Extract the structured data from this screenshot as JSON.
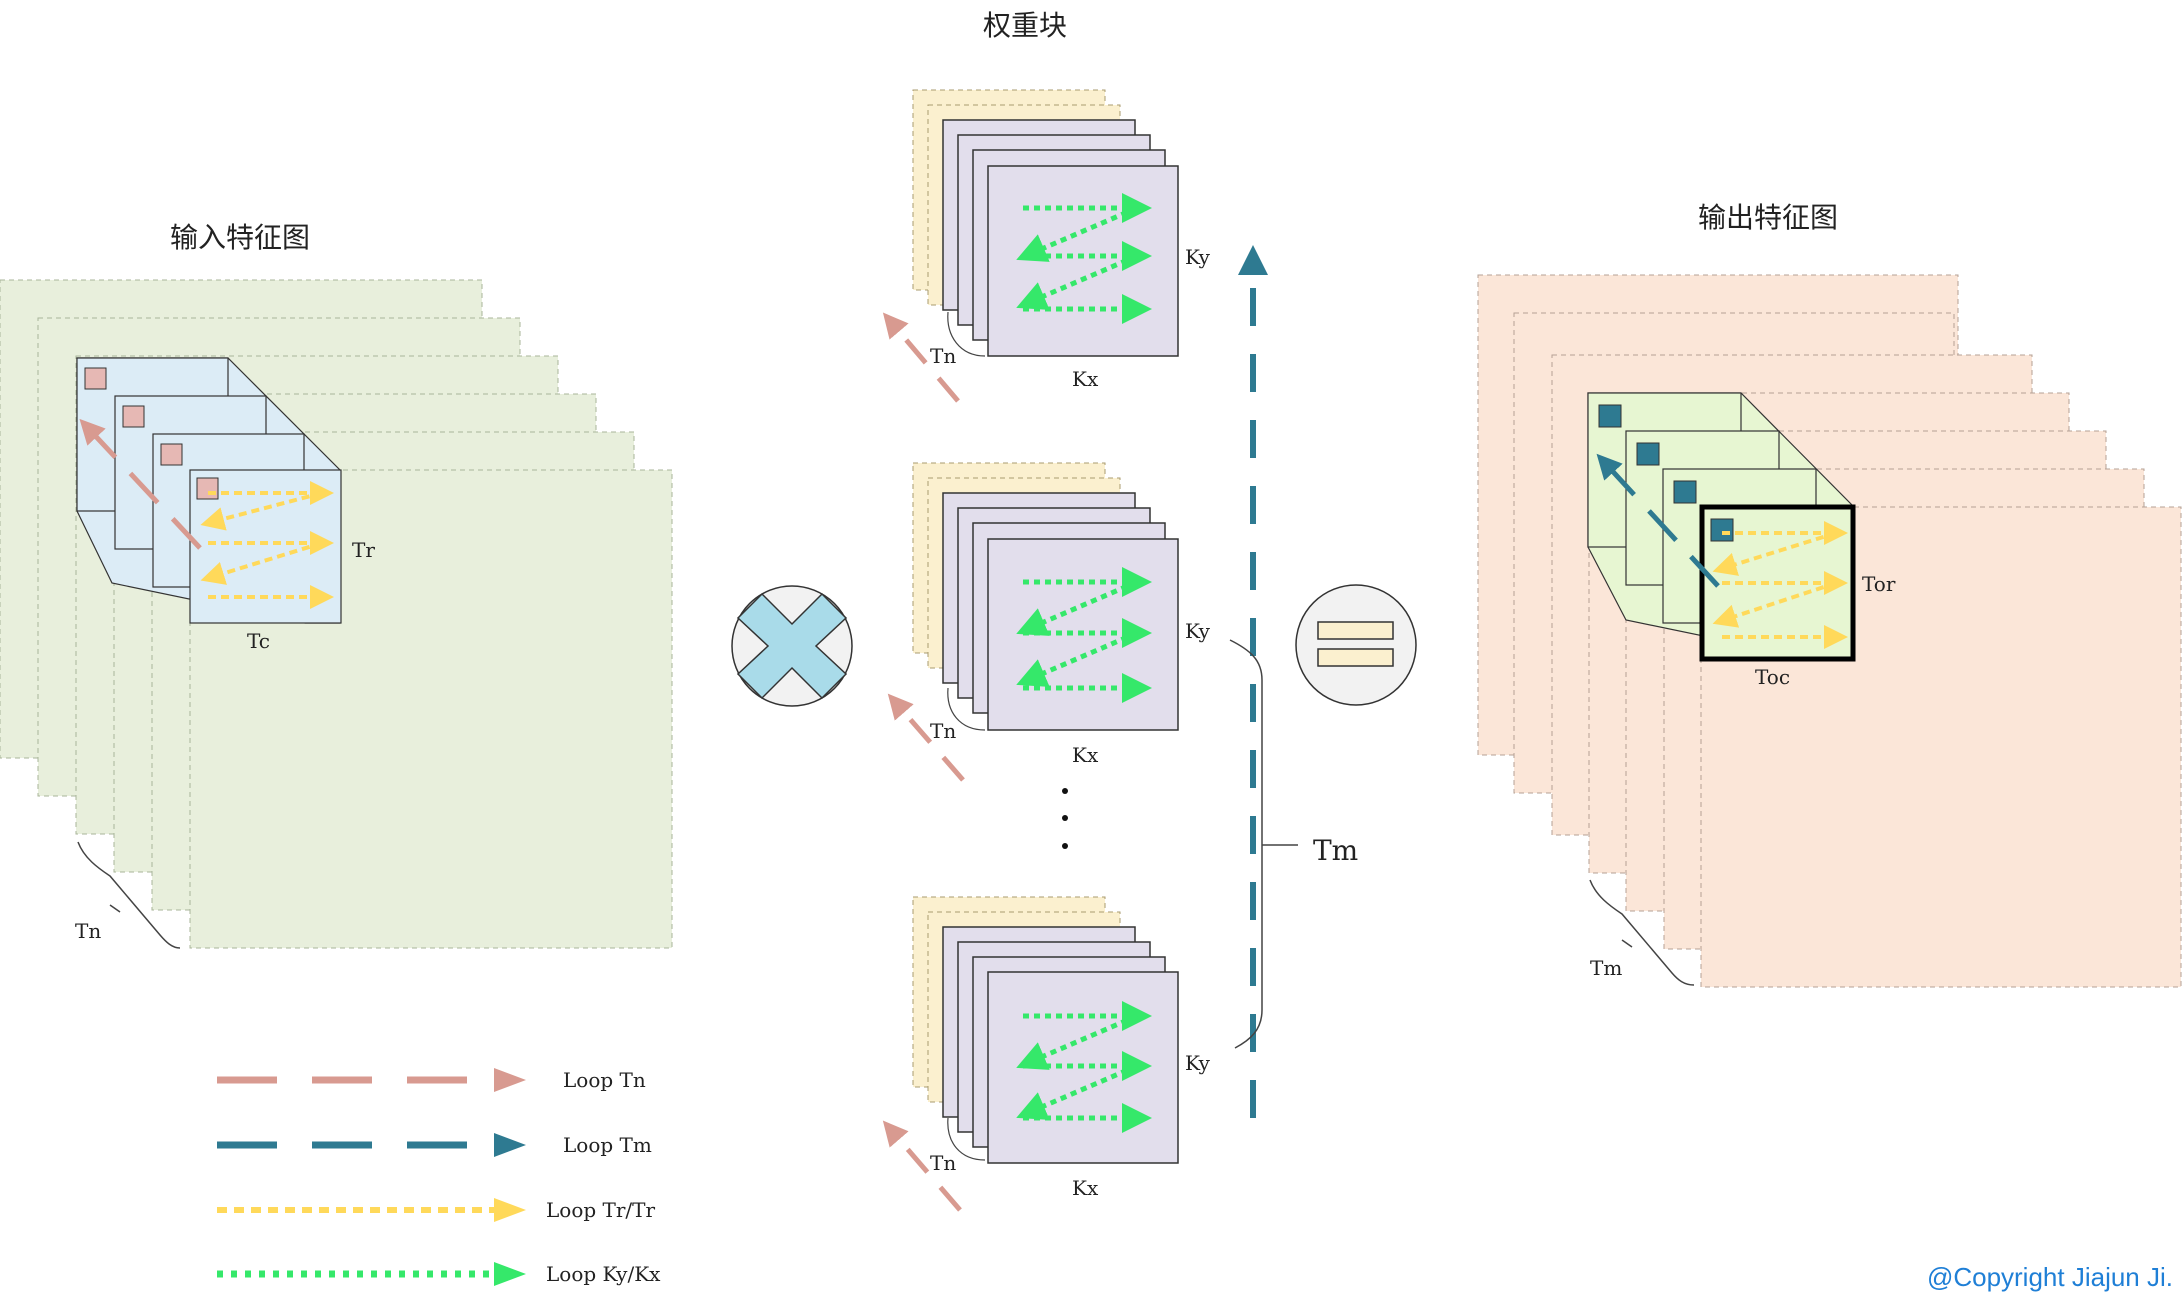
{
  "titles": {
    "input": "输入特征图",
    "weights": "权重块",
    "output": "输出特征图"
  },
  "input_map": {
    "tr": "Tr",
    "tc": "Tc",
    "tn": "Tn"
  },
  "weights": {
    "groups": [
      {
        "ky": "Ky",
        "kx": "Kx",
        "tn": "Tn"
      },
      {
        "ky": "Ky",
        "kx": "Kx",
        "tn": "Tn"
      },
      {
        "ky": "Ky",
        "kx": "Kx",
        "tn": "Tn"
      }
    ],
    "tm": "Tm"
  },
  "output_map": {
    "tor": "Tor",
    "toc": "Toc",
    "tm": "Tm"
  },
  "legend": [
    {
      "label": "Loop  Tn",
      "color": "#d89a90",
      "style": "long-dash"
    },
    {
      "label": "Loop  Tm",
      "color": "#2e7a91",
      "style": "long-dash"
    },
    {
      "label": "Loop  Tr/Tr",
      "color": "#ffd95a",
      "style": "short-dash"
    },
    {
      "label": "Loop  Ky/Kx",
      "color": "#35e86a",
      "style": "dots"
    }
  ],
  "copyright": "@Copyright Jiajun Ji.",
  "colors": {
    "input_plane": "#e8efdc",
    "input_tile": "#dcecf6",
    "input_marker": "#e6b8b4",
    "weight_back": "#fbf0cf",
    "weight_front": "#e2deec",
    "output_plane": "#fbe6d8",
    "output_tile": "#e7f6d2",
    "output_marker": "#2e7a91",
    "loop_tn": "#d89a90",
    "loop_tm": "#2e7a91",
    "loop_tr": "#ffd95a",
    "loop_k": "#35e86a",
    "operator": "#f2f2f2",
    "multiply": "#a9dbe9",
    "equals": "#fbf0cf"
  }
}
